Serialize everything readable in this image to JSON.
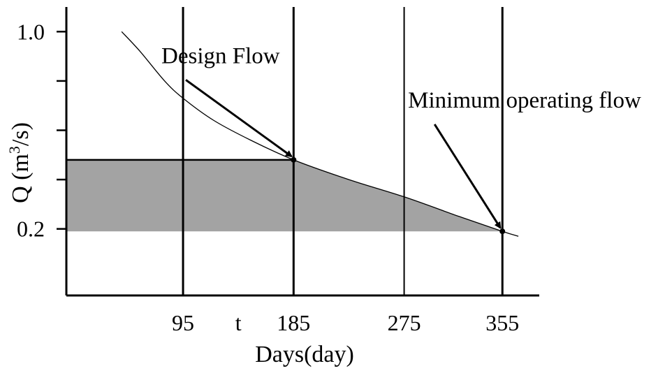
{
  "chart_data": {
    "type": "line",
    "title": "",
    "xlabel": "Days(day)",
    "ylabel_text": "Q (m",
    "ylabel_sup": "3",
    "ylabel_tail": "/s)",
    "xlim": [
      0,
      385
    ],
    "ylim": [
      -0.07,
      1.1
    ],
    "x_ticks": [
      {
        "value": 95,
        "label": "95"
      },
      {
        "value": 140,
        "label": "t"
      },
      {
        "value": 185,
        "label": "185"
      },
      {
        "value": 275,
        "label": "275"
      },
      {
        "value": 355,
        "label": "355"
      }
    ],
    "y_ticks": [
      {
        "value": 1.0,
        "label": "1.0"
      },
      {
        "value": 0.8,
        "label": ""
      },
      {
        "value": 0.6,
        "label": ""
      },
      {
        "value": 0.4,
        "label": ""
      },
      {
        "value": 0.2,
        "label": "0.2"
      }
    ],
    "vertical_lines_x": [
      95,
      185,
      275,
      355
    ],
    "series": [
      {
        "values": [
          {
            "x": 45,
            "y": 1.0
          },
          {
            "x": 60,
            "y": 0.92
          },
          {
            "x": 80,
            "y": 0.8
          },
          {
            "x": 95,
            "y": 0.73
          },
          {
            "x": 120,
            "y": 0.64
          },
          {
            "x": 150,
            "y": 0.56
          },
          {
            "x": 185,
            "y": 0.48
          },
          {
            "x": 230,
            "y": 0.4
          },
          {
            "x": 275,
            "y": 0.33
          },
          {
            "x": 320,
            "y": 0.25
          },
          {
            "x": 355,
            "y": 0.19
          },
          {
            "x": 368,
            "y": 0.17
          }
        ]
      }
    ],
    "shaded_region": {
      "x_from": 0,
      "x_to": 355,
      "y_floor": 0.19,
      "y_top": 0.48
    },
    "points": [
      {
        "label": "Design Flow",
        "x": 185,
        "y": 0.48,
        "label_x": 120,
        "label_y": 0.81
      },
      {
        "label": "Minimum operating flow",
        "x": 355,
        "y": 0.19,
        "label_x": 318,
        "label_y": 0.63
      }
    ],
    "colors": {
      "shade": "#a3a3a3",
      "line": "#000000"
    }
  }
}
